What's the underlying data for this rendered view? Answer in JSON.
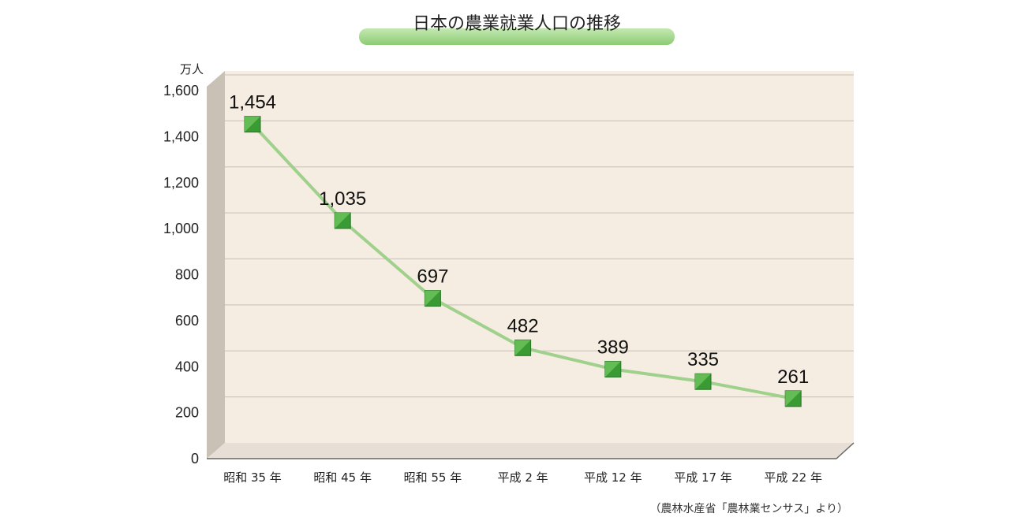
{
  "chart_data": {
    "type": "line",
    "title": "日本の農業就業人口の推移",
    "ylabel": "万人",
    "categories": [
      "昭和 35 年",
      "昭和 45 年",
      "昭和 55 年",
      "平成 2 年",
      "平成 12 年",
      "平成 17 年",
      "平成 22 年"
    ],
    "values": [
      1454,
      1035,
      697,
      482,
      389,
      335,
      261
    ],
    "data_labels": [
      "1,454",
      "1,035",
      "697",
      "482",
      "389",
      "335",
      "261"
    ],
    "yticks": [
      "0",
      "200",
      "400",
      "600",
      "800",
      "1,000",
      "1,200",
      "1,400",
      "1,600"
    ],
    "ylim": [
      0,
      1600
    ],
    "grid": true,
    "source": "（農林水産省「農林業センサス」より）"
  },
  "colors": {
    "plot_bg": "#f6ede2",
    "grid": "#cfc8c0",
    "side_wall": "#c9c0b6",
    "floor": "#e7dfd6",
    "line": "#9fd08c",
    "marker": "#3a9a34",
    "marker_light": "#6cc25a",
    "title_pill": "#a5d88f"
  }
}
